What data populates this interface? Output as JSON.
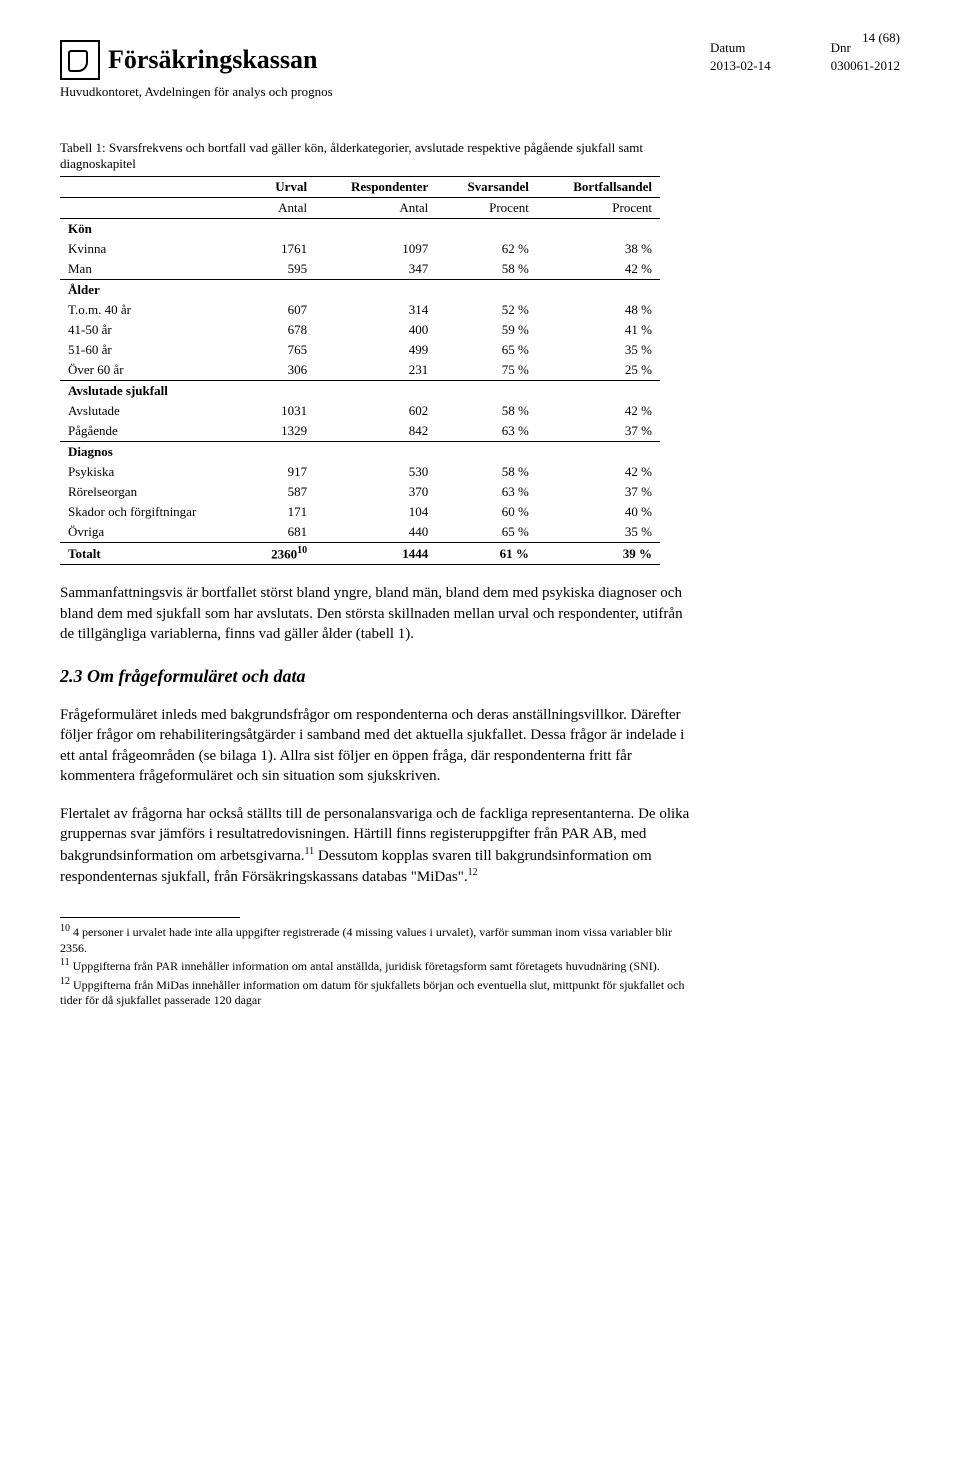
{
  "header": {
    "logo_text": "Försäkringskassan",
    "sub_org": "Huvudkontoret, Avdelningen för analys och prognos",
    "datum_label": "Datum",
    "datum_value": "2013-02-14",
    "dnr_label": "Dnr",
    "dnr_value": "030061-2012",
    "page_num": "14 (68)"
  },
  "table": {
    "caption": "Tabell 1: Svarsfrekvens och bortfall vad gäller kön, ålderkategorier, avslutade respektive pågående sjukfall samt diagnoskapitel",
    "col_headers": [
      "",
      "Urval",
      "Respondenter",
      "Svarsandel",
      "Bortfallsandel"
    ],
    "sub_headers": [
      "",
      "Antal",
      "Antal",
      "Procent",
      "Procent"
    ],
    "sections": [
      {
        "label": "Kön",
        "rows": [
          {
            "k": "Kvinna",
            "v": [
              "1761",
              "1097",
              "62 %",
              "38 %"
            ]
          },
          {
            "k": "Man",
            "v": [
              "595",
              "347",
              "58 %",
              "42 %"
            ]
          }
        ]
      },
      {
        "label": "Ålder",
        "rows": [
          {
            "k": "T.o.m. 40 år",
            "v": [
              "607",
              "314",
              "52 %",
              "48 %"
            ]
          },
          {
            "k": "41-50 år",
            "v": [
              "678",
              "400",
              "59 %",
              "41 %"
            ]
          },
          {
            "k": "51-60 år",
            "v": [
              "765",
              "499",
              "65 %",
              "35 %"
            ]
          },
          {
            "k": "Över 60 år",
            "v": [
              "306",
              "231",
              "75 %",
              "25 %"
            ]
          }
        ]
      },
      {
        "label": "Avslutade sjukfall",
        "rows": [
          {
            "k": "Avslutade",
            "v": [
              "1031",
              "602",
              "58 %",
              "42 %"
            ]
          },
          {
            "k": "Pågående",
            "v": [
              "1329",
              "842",
              "63 %",
              "37 %"
            ]
          }
        ]
      },
      {
        "label": "Diagnos",
        "rows": [
          {
            "k": "Psykiska",
            "v": [
              "917",
              "530",
              "58 %",
              "42 %"
            ]
          },
          {
            "k": "Rörelseorgan",
            "v": [
              "587",
              "370",
              "63 %",
              "37 %"
            ]
          },
          {
            "k": "Skador och förgiftningar",
            "v": [
              "171",
              "104",
              "60 %",
              "40 %"
            ]
          },
          {
            "k": "Övriga",
            "v": [
              "681",
              "440",
              "65 %",
              "35 %"
            ]
          }
        ]
      }
    ],
    "total_label": "Totalt",
    "total_values": [
      "2360",
      "1444",
      "61 %",
      "39 %"
    ],
    "total_sup": "10"
  },
  "paragraphs": {
    "p1": "Sammanfattningsvis är bortfallet störst bland yngre, bland män, bland dem med psykiska diagnoser och bland dem med sjukfall som har avslutats. Den största skillnaden mellan urval och respondenter, utifrån de tillgängliga variablerna, finns vad gäller ålder (tabell 1).",
    "section_heading": "2.3  Om frågeformuläret och data",
    "p2": "Frågeformuläret inleds med bakgrundsfrågor om respondenterna och deras anställningsvillkor. Därefter följer frågor om rehabiliteringsåtgärder i samband med det aktuella sjukfallet. Dessa frågor är indelade i ett antal frågeområden (se bilaga 1). Allra sist följer en öppen fråga, där respondenterna fritt får kommentera frågeformuläret och sin situation som sjukskriven.",
    "p3a": "Flertalet av frågorna har också ställts till de personalansvariga och de fackliga representanterna. De olika gruppernas svar jämförs i resultatredovisningen. Härtill finns registeruppgifter från PAR AB, med bakgrundsinformation om arbetsgivarna.",
    "p3b": " Dessutom kopplas svaren till bakgrundsinformation om respondenternas sjukfall, från Försäkringskassans databas \"MiDas\".",
    "sup11": "11",
    "sup12": "12"
  },
  "footnotes": {
    "fn10_sup": "10",
    "fn10": " 4 personer i urvalet hade inte alla uppgifter registrerade (4 missing values i urvalet), varför summan inom vissa variabler blir 2356.",
    "fn11_sup": "11",
    "fn11": " Uppgifterna från PAR innehåller information om antal anställda, juridisk företagsform samt företagets huvudnäring (SNI).",
    "fn12_sup": "12",
    "fn12": " Uppgifterna från MiDas innehåller information om datum för sjukfallets början och eventuella slut, mittpunkt för sjukfallet och tider för då sjukfallet passerade 120 dagar"
  }
}
